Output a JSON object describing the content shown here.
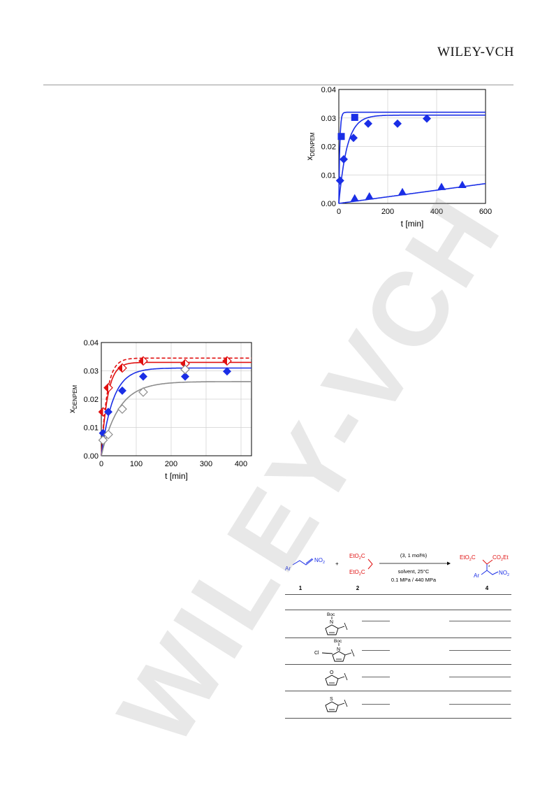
{
  "header": {
    "publisher": "WILEY-VCH"
  },
  "watermark": {
    "text": "WILEY-VCH"
  },
  "chart_data": [
    {
      "type": "scatter",
      "xlabel": "t [min]",
      "ylabel": "x",
      "ylabel_sub": "DENPEM",
      "xlim": [
        0,
        600
      ],
      "ylim": [
        0,
        0.04
      ],
      "xticks": [
        "0",
        "200",
        "400",
        "600"
      ],
      "yticks": [
        "0.00",
        "0.01",
        "0.02",
        "0.03",
        "0.04"
      ],
      "series": [
        {
          "marker": "square",
          "color": "#1a2ee6",
          "x": [
            10,
            65
          ],
          "y": [
            0.0235,
            0.0302
          ]
        },
        {
          "marker": "diamond",
          "color": "#1a2ee6",
          "x": [
            5,
            20,
            60,
            120,
            240,
            360
          ],
          "y": [
            0.008,
            0.0155,
            0.023,
            0.028,
            0.028,
            0.0298
          ]
        },
        {
          "marker": "triangle",
          "color": "#1a2ee6",
          "x": [
            65,
            125,
            260,
            420,
            505
          ],
          "y": [
            0.0018,
            0.0025,
            0.004,
            0.0058,
            0.0065
          ]
        }
      ],
      "fits": [
        {
          "color": "#1a2ee6",
          "plateau": 0.032,
          "k": 0.25
        },
        {
          "color": "#1a2ee6",
          "plateau": 0.031,
          "k": 0.03
        },
        {
          "color": "#1a2ee6",
          "linear_slope": 1.16e-05
        }
      ]
    },
    {
      "type": "scatter",
      "xlabel": "t [min]",
      "ylabel": "x",
      "ylabel_sub": "DENPEM",
      "xlim": [
        0,
        430
      ],
      "ylim": [
        0,
        0.04
      ],
      "xticks": [
        "0",
        "100",
        "200",
        "300",
        "400"
      ],
      "yticks": [
        "0.00",
        "0.01",
        "0.02",
        "0.03",
        "0.04"
      ],
      "series": [
        {
          "marker": "diamond-half",
          "color": "#e01010",
          "x": [
            5,
            20,
            60,
            120,
            240,
            360
          ],
          "y": [
            0.0155,
            0.024,
            0.031,
            0.0335,
            0.0325,
            0.0335
          ]
        },
        {
          "marker": "diamond",
          "color": "#1a2ee6",
          "x": [
            5,
            20,
            60,
            120,
            240,
            360
          ],
          "y": [
            0.008,
            0.0155,
            0.023,
            0.028,
            0.028,
            0.0298
          ]
        },
        {
          "marker": "diamond-open",
          "color": "#8c8c8c",
          "x": [
            5,
            20,
            60,
            120,
            240
          ],
          "y": [
            0.0055,
            0.0075,
            0.0165,
            0.0225,
            0.0305
          ]
        }
      ],
      "fits": [
        {
          "color": "#e01010",
          "plateau": 0.0345,
          "k": 0.06,
          "dashed": true
        },
        {
          "color": "#e01010",
          "plateau": 0.033,
          "k": 0.055
        },
        {
          "color": "#1a2ee6",
          "plateau": 0.031,
          "k": 0.03
        },
        {
          "color": "#8c8c8c",
          "plateau": 0.0262,
          "k": 0.02
        }
      ]
    }
  ],
  "scheme": {
    "reactant1_group": "Ar",
    "reactant1_nitro": "NO",
    "reactant1_nitro_sub": "2",
    "plus": "+",
    "reactant2_top": "EtO",
    "reactant2_top_sub": "2",
    "reactant2_top_end": "C",
    "reactant2_bottom": "EtO",
    "reactant2_bottom_sub": "2",
    "reactant2_bottom_end": "C",
    "conditions_catalyst": "(3, 1 mol%)",
    "conditions_solvent": "solvent, 25°C",
    "conditions_pressure": "0.1 MPa / 440 MPa",
    "product_left": "EtO",
    "product_left_sub": "2",
    "product_left_end": "C",
    "product_right": "CO",
    "product_right_sub": "2",
    "product_right_end": "Et",
    "product_ar": "Ar",
    "product_nitro": "NO",
    "product_nitro_sub": "2",
    "product_star": "*",
    "label_1": "1",
    "label_2": "2",
    "label_4": "4"
  },
  "table": {
    "rows": [
      {
        "substituent": "N-Boc-pyrrol-2-yl",
        "atom": "N",
        "protect": "Boc",
        "extra": ""
      },
      {
        "substituent": "5-chloro-N-Boc-pyrrol-2-yl",
        "atom": "N",
        "protect": "Boc",
        "extra": "Cl"
      },
      {
        "substituent": "furan-2-yl",
        "atom": "O",
        "protect": "",
        "extra": ""
      },
      {
        "substituent": "thiophen-2-yl",
        "atom": "S",
        "protect": "",
        "extra": ""
      }
    ]
  }
}
